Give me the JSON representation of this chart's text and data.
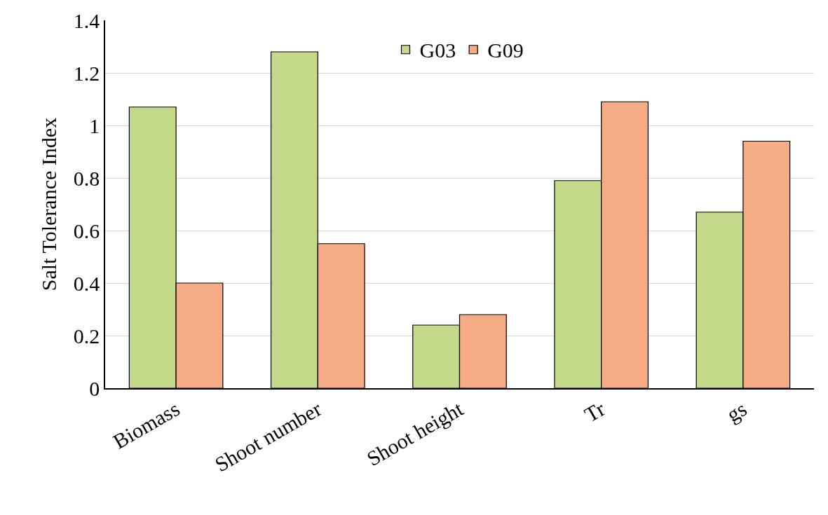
{
  "chart_data": {
    "type": "bar",
    "ylabel": "Salt Tolerance Index",
    "categories": [
      "Biomass",
      "Shoot number",
      "Shoot height",
      "Tr",
      "gs"
    ],
    "series": [
      {
        "name": "G03",
        "color": "#c4d98a",
        "values": [
          1.07,
          1.28,
          0.24,
          0.79,
          0.67
        ]
      },
      {
        "name": "G09",
        "color": "#f5ac84",
        "values": [
          0.4,
          0.55,
          0.28,
          1.09,
          0.94
        ]
      }
    ],
    "ylim": [
      0,
      1.4
    ],
    "yticks": [
      0,
      0.2,
      0.4,
      0.6,
      0.8,
      1,
      1.2,
      1.4
    ],
    "grid": "y",
    "legend": "top"
  }
}
